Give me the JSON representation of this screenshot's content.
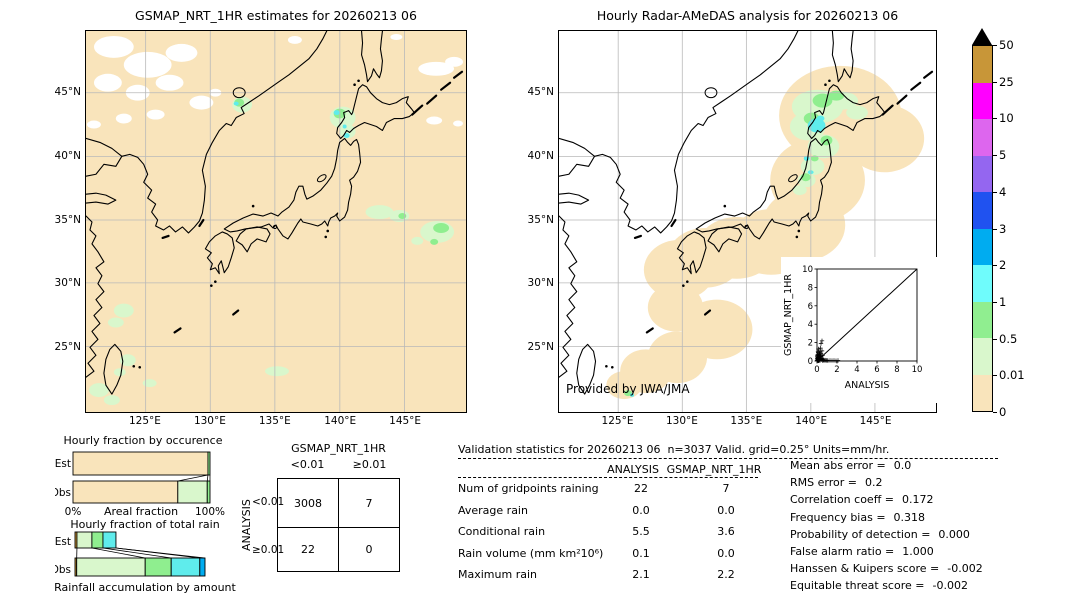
{
  "palette": {
    "peach": "#f9e4bb",
    "pale_green": "#d9f7cc",
    "green": "#8fee8f",
    "cyan": "#5fecec",
    "sky": "#00acf0",
    "blue": "#2052f0",
    "purple": "#9466f0",
    "orchid": "#dd66ee",
    "magenta": "#ff00ff",
    "tan": "#c89638",
    "grid": "#b9b9b9",
    "missing": "#ffffff"
  },
  "maps": {
    "lon_ticks": [
      "125°E",
      "130°E",
      "135°E",
      "140°E",
      "145°E"
    ],
    "lat_ticks": [
      "45°N",
      "40°N",
      "35°N",
      "30°N",
      "25°N"
    ]
  },
  "colorbar": {
    "units": "mm/hr",
    "labels": [
      "50",
      "25",
      "10",
      "5",
      "4",
      "3",
      "2",
      "1",
      "0.5",
      "0.01",
      "0"
    ],
    "colors": [
      "#c89638",
      "#ff00ff",
      "#dd66ee",
      "#9466f0",
      "#2052f0",
      "#00acf0",
      "#6ffcfc",
      "#90ee90",
      "#d9f7cc",
      "#f9e4bb"
    ],
    "over_color": "#000000"
  },
  "contingency": {
    "col_title": "GSMAP_NRT_1HR",
    "col_labels": [
      "<0.01",
      "≥0.01"
    ],
    "row_title": "ANALYSIS",
    "row_labels": [
      "<0.01",
      "≥0.01"
    ],
    "cells": [
      [
        "3008",
        "7"
      ],
      [
        "22",
        "0"
      ]
    ]
  },
  "stats": {
    "title": "Validation statistics for 20260213 06  n=3037 Valid. grid=0.25° Units=mm/hr.",
    "col_headers": [
      "ANALYSIS",
      "GSMAP_NRT_1HR"
    ],
    "rows": [
      {
        "label": "Num of gridpoints raining",
        "a": "22",
        "g": "7"
      },
      {
        "label": "Average rain",
        "a": "0.0",
        "g": "0.0"
      },
      {
        "label": "Conditional rain",
        "a": "5.5",
        "g": "3.6"
      },
      {
        "label": "Rain volume (mm km²10⁶)",
        "a": "0.1",
        "g": "0.0"
      },
      {
        "label": "Maximum rain",
        "a": "2.1",
        "g": "2.2"
      }
    ]
  },
  "metrics": [
    {
      "label": "Mean abs error =",
      "value": "0.0"
    },
    {
      "label": "RMS error =",
      "value": "0.2"
    },
    {
      "label": "Correlation coeff =",
      "value": "0.172"
    },
    {
      "label": "Frequency bias =",
      "value": "0.318"
    },
    {
      "label": "Probability of detection =",
      "value": "0.000"
    },
    {
      "label": "False alarm ratio =",
      "value": "1.000"
    },
    {
      "label": "Hanssen & Kuipers score =",
      "value": "-0.002"
    },
    {
      "label": "Equitable threat score =",
      "value": "-0.002"
    }
  ],
  "chart_data": [
    {
      "type": "heatmap",
      "id": "gsmap-map",
      "title": "GSMAP_NRT_1HR estimates for 20260213 06",
      "units": "mm/hr",
      "lon_range_deg_e": [
        120.4,
        149.8
      ],
      "lat_range_deg_n": [
        20,
        49.9
      ],
      "legend_levels": [
        0,
        0.01,
        0.5,
        1,
        2,
        3,
        4,
        5,
        10,
        25,
        50
      ],
      "description": "Satellite rain map: background 0–0.01 mm/hr (peach) with white missing-data patches over NE Asia; small 0.01–2 mm/hr patches near SW Hokkaido, Vladivostok coast, east of Honshu and near Okinawa/Taiwan."
    },
    {
      "type": "heatmap",
      "id": "radar-map",
      "title": "Hourly Radar-AMeDAS analysis for 20260213 06",
      "credit": "Provided by JWA/JMA",
      "units": "mm/hr",
      "lon_range_deg_e": [
        120.4,
        149.8
      ],
      "lat_range_deg_n": [
        20,
        49.9
      ],
      "legend_levels": [
        0,
        0.01,
        0.5,
        1,
        2,
        3,
        4,
        5,
        10,
        25,
        50
      ],
      "description": "Radar coverage blobs (0–0.01 mm/hr, peach) along the Japanese archipelago; 0.01–3 mm/hr rain (pale green/green/cyan) over western Hokkaido and northern Tohoku; white = outside radar range."
    },
    {
      "type": "scatter",
      "id": "inset-scatter",
      "xlabel": "ANALYSIS",
      "ylabel": "GSMAP_NRT_1HR",
      "xlim": [
        0,
        10
      ],
      "ylim": [
        0,
        10
      ],
      "tick_labels": [
        "0",
        "2",
        "4",
        "6",
        "8",
        "10"
      ],
      "identity_line": true,
      "points": [
        [
          0.02,
          0.02
        ],
        [
          0.05,
          0.1
        ],
        [
          0.08,
          0.05
        ],
        [
          0.1,
          0.2
        ],
        [
          0.12,
          0.4
        ],
        [
          0.15,
          0.1
        ],
        [
          0.18,
          0.6
        ],
        [
          0.2,
          0.3
        ],
        [
          0.22,
          0.9
        ],
        [
          0.25,
          0.15
        ],
        [
          0.3,
          1.0
        ],
        [
          0.3,
          0.5
        ],
        [
          0.35,
          1.4
        ],
        [
          0.4,
          0.8
        ],
        [
          0.4,
          1.9
        ],
        [
          0.45,
          0.3
        ],
        [
          0.5,
          2.2
        ],
        [
          0.5,
          1.1
        ],
        [
          0.55,
          0.6
        ],
        [
          0.6,
          0.2
        ],
        [
          0.65,
          0.1
        ],
        [
          0.7,
          0.05
        ],
        [
          0.8,
          0.1
        ],
        [
          0.9,
          0.05
        ],
        [
          1.0,
          0.08
        ],
        [
          1.1,
          0.03
        ],
        [
          1.3,
          0.05
        ],
        [
          1.5,
          0.04
        ],
        [
          1.7,
          0.05
        ],
        [
          1.9,
          0.03
        ],
        [
          2.1,
          0.05
        ],
        [
          0.05,
          0.3
        ],
        [
          0.08,
          0.7
        ],
        [
          0.1,
          1.0
        ],
        [
          0.15,
          1.3
        ],
        [
          0.05,
          0.6
        ],
        [
          0.12,
          0.9
        ],
        [
          0.3,
          0.1
        ],
        [
          0.2,
          0.05
        ],
        [
          0.15,
          0.02
        ],
        [
          0.03,
          0.05
        ],
        [
          0.06,
          0.15
        ],
        [
          0.04,
          0.25
        ],
        [
          0.09,
          0.35
        ],
        [
          0.02,
          0.45
        ],
        [
          0.07,
          0.55
        ],
        [
          0.12,
          0.12
        ],
        [
          0.18,
          0.22
        ],
        [
          0.25,
          0.45
        ],
        [
          0.35,
          0.25
        ],
        [
          0.45,
          0.15
        ],
        [
          0.3,
          0.05
        ],
        [
          0.55,
          0.05
        ],
        [
          0.22,
          0.65
        ],
        [
          0.28,
          0.75
        ],
        [
          0.14,
          0.55
        ],
        [
          0.35,
          0.6
        ],
        [
          0.42,
          0.5
        ]
      ]
    },
    {
      "type": "bar",
      "id": "hourly-fraction-by-occurrence",
      "title": "Hourly fraction by occurence",
      "rows": [
        "Est",
        "Obs"
      ],
      "xlabel": "Areal fraction",
      "x_min_label": "0%",
      "x_max_label": "100%",
      "series": {
        "Est": [
          [
            "peach",
            0.985
          ],
          [
            "green",
            0.015
          ]
        ],
        "Obs": [
          [
            "peach",
            0.765
          ],
          [
            "pale_green",
            0.215
          ],
          [
            "green",
            0.02
          ]
        ]
      },
      "connectors": [
        [
          0.985,
          0.765
        ],
        [
          0.985,
          0.98
        ],
        [
          1,
          1
        ]
      ]
    },
    {
      "type": "bar",
      "id": "hourly-fraction-of-total-rain",
      "title": "Hourly fraction of total rain",
      "rows": [
        "Est",
        "Obs"
      ],
      "xlabel": "Rainfall accumulation by amount",
      "series": {
        "Est": [
          [
            "tan",
            0.015
          ],
          [
            "pale_green",
            0.115
          ],
          [
            "green",
            0.085
          ],
          [
            "cyan",
            0.1
          ]
        ],
        "Obs": [
          [
            "tan",
            0.013
          ],
          [
            "pale_green",
            0.527
          ],
          [
            "green",
            0.2
          ],
          [
            "cyan",
            0.22
          ],
          [
            "sky",
            0.04
          ]
        ]
      },
      "connectors": [
        [
          0.015,
          0.013
        ],
        [
          0.13,
          0.54
        ],
        [
          0.215,
          0.74
        ],
        [
          0.315,
          0.96
        ],
        [
          0.315,
          1.0
        ]
      ]
    }
  ]
}
